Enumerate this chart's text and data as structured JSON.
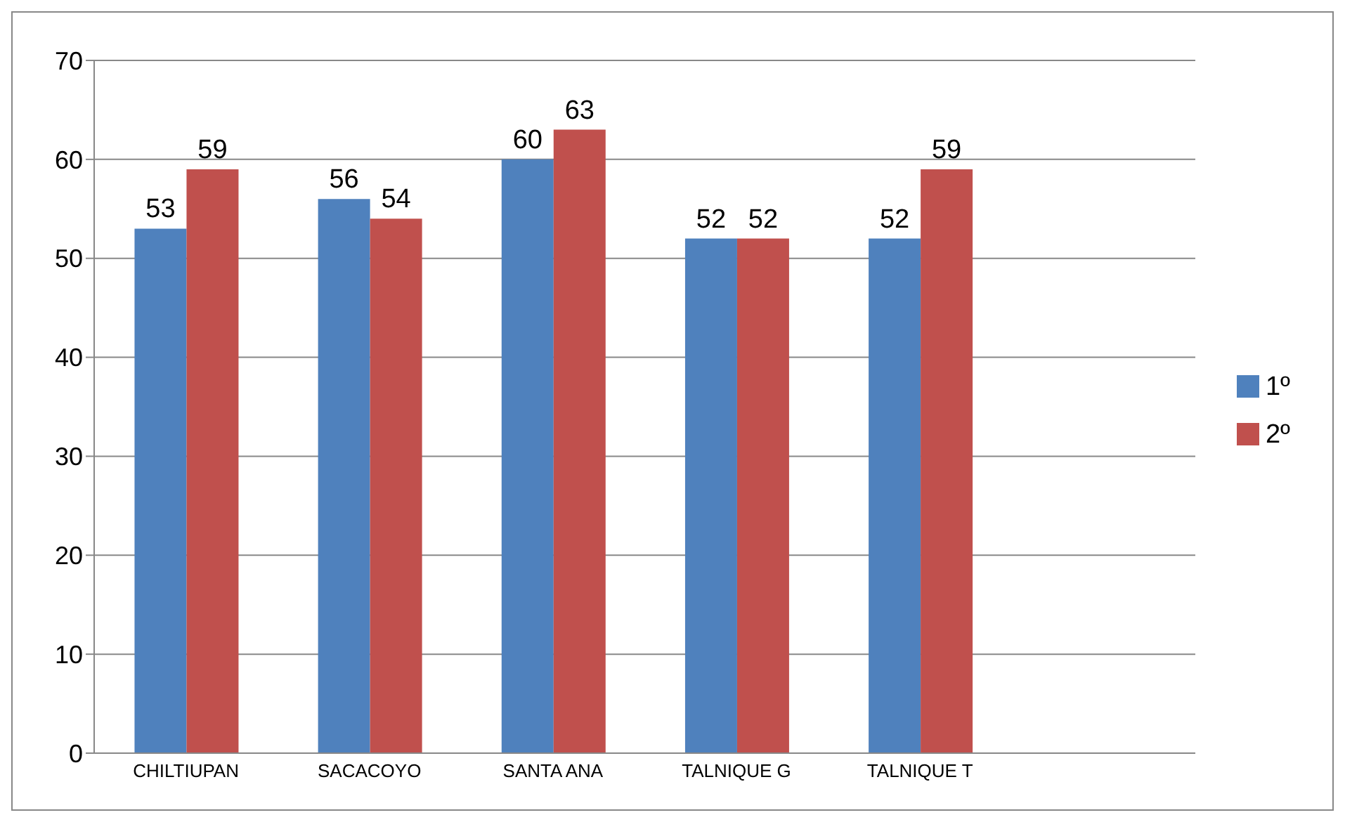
{
  "chart_data": {
    "type": "bar",
    "categories": [
      "CHILTIUPAN",
      "SACACOYO",
      "SANTA ANA",
      "TALNIQUE G",
      "TALNIQUE T",
      null
    ],
    "series": [
      {
        "name": "1º",
        "color": "#4f81bd",
        "values": [
          53,
          56,
          60,
          52,
          52,
          null
        ]
      },
      {
        "name": "2º",
        "color": "#c0504d",
        "values": [
          59,
          54,
          63,
          52,
          59,
          null
        ]
      }
    ],
    "ylim": [
      0,
      70
    ],
    "yticks": [
      0,
      10,
      20,
      30,
      40,
      50,
      60,
      70
    ],
    "grid": "y",
    "legend": "right",
    "data_labels": true
  }
}
